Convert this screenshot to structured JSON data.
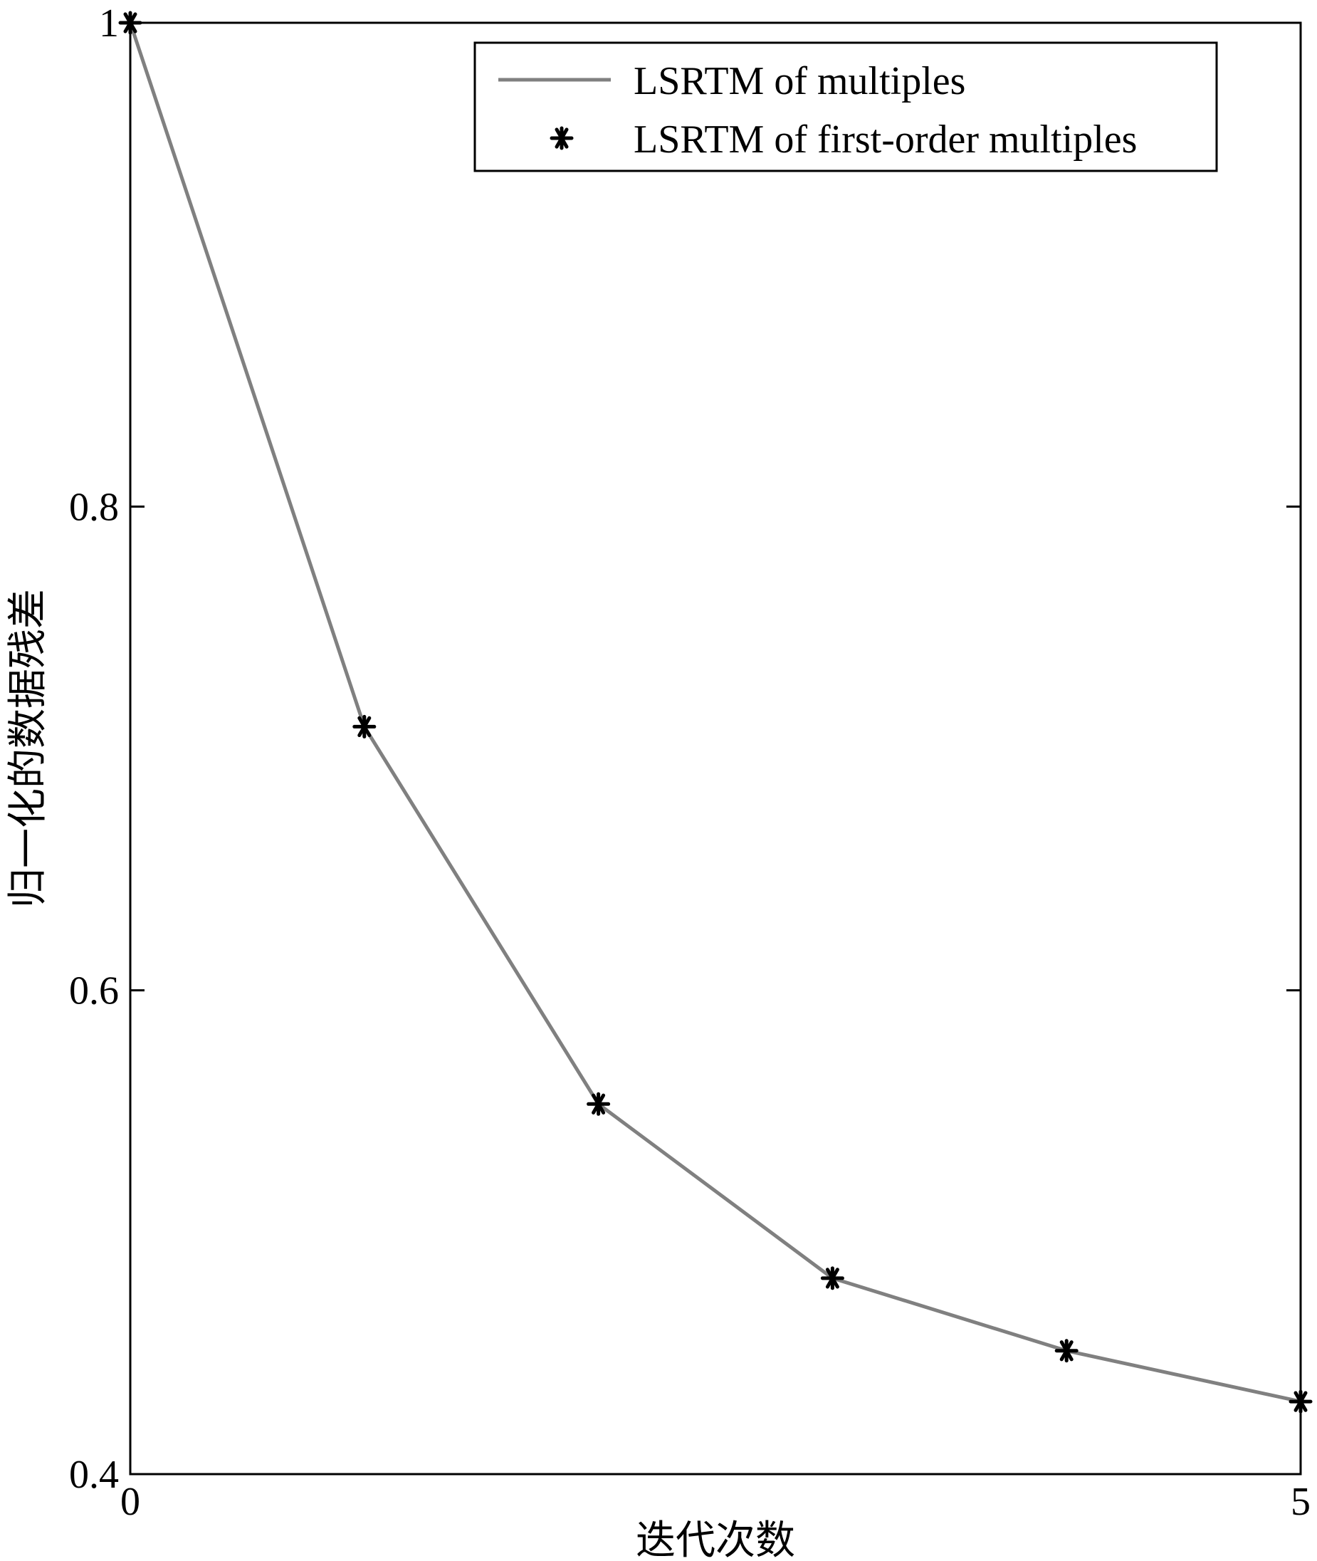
{
  "chart_data": {
    "type": "line",
    "title": "",
    "xlabel": "迭代次数",
    "ylabel": "归一化的数据残差",
    "xlim": [
      0,
      5
    ],
    "ylim": [
      0.4,
      1.0
    ],
    "x_ticks": [
      "0",
      "5"
    ],
    "y_ticks": [
      "0.4",
      "0.6",
      "0.8",
      "1"
    ],
    "x_tick_values": [
      0,
      5
    ],
    "y_tick_values": [
      0.4,
      0.6,
      0.8,
      1.0
    ],
    "grid": false,
    "legend_position": "top-right",
    "series": [
      {
        "name": "LSRTM of multiples",
        "style": "line",
        "color": "#808080",
        "x": [
          0,
          1,
          2,
          3,
          4,
          5
        ],
        "y": [
          1.0,
          0.709,
          0.553,
          0.481,
          0.451,
          0.43
        ]
      },
      {
        "name": "LSRTM of first-order multiples",
        "style": "markers",
        "marker": "asterisk",
        "color": "#000000",
        "x": [
          0,
          1,
          2,
          3,
          4,
          5
        ],
        "y": [
          1.0,
          0.709,
          0.553,
          0.481,
          0.451,
          0.43
        ]
      }
    ]
  }
}
